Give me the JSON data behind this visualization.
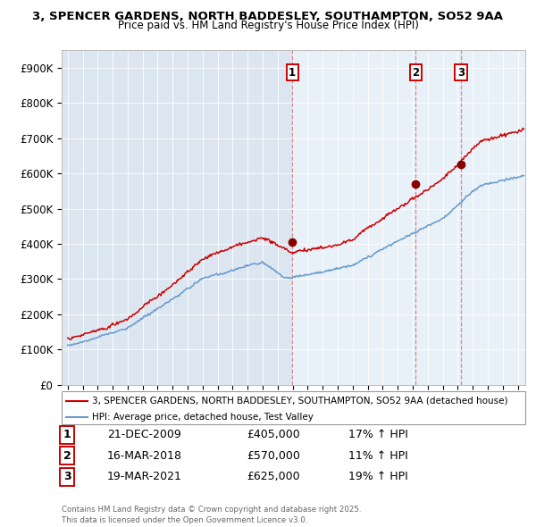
{
  "title_line1": "3, SPENCER GARDENS, NORTH BADDESLEY, SOUTHAMPTON, SO52 9AA",
  "title_line2": "Price paid vs. HM Land Registry's House Price Index (HPI)",
  "background_color": "#ffffff",
  "plot_bg_color_left": "#dce6f1",
  "plot_bg_color_right": "#e8f0f8",
  "ylabel": "",
  "ytick_labels": [
    "£0",
    "£100K",
    "£200K",
    "£300K",
    "£400K",
    "£500K",
    "£600K",
    "£700K",
    "£800K",
    "£900K"
  ],
  "ytick_values": [
    0,
    100000,
    200000,
    300000,
    400000,
    500000,
    600000,
    700000,
    800000,
    900000
  ],
  "ylim": [
    0,
    950000
  ],
  "sale_dates_decimal": [
    2009.972,
    2018.204,
    2021.215
  ],
  "sale_prices": [
    405000,
    570000,
    625000
  ],
  "sale_labels": [
    "1",
    "2",
    "3"
  ],
  "sale_pct": [
    "17% ↑ HPI",
    "11% ↑ HPI",
    "19% ↑ HPI"
  ],
  "sale_date_strs": [
    "21-DEC-2009",
    "16-MAR-2018",
    "19-MAR-2021"
  ],
  "vline_color": "#dd8888",
  "property_line_color": "#cc0000",
  "hpi_line_color": "#6699cc",
  "sale_dot_color": "#880000",
  "legend_property": "3, SPENCER GARDENS, NORTH BADDESLEY, SOUTHAMPTON, SO52 9AA (detached house)",
  "legend_hpi": "HPI: Average price, detached house, Test Valley",
  "footer_text": "Contains HM Land Registry data © Crown copyright and database right 2025.\nThis data is licensed under the Open Government Licence v3.0.",
  "xlim_start": 1994.6,
  "xlim_end": 2025.5
}
